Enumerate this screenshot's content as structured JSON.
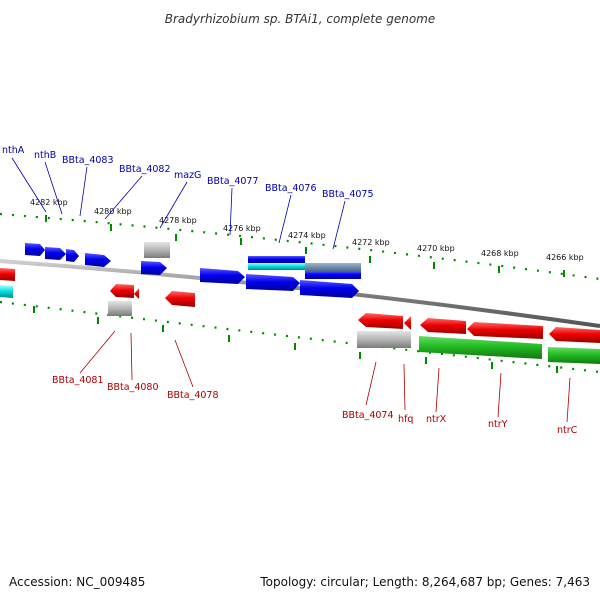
{
  "title": "Bradyrhizobium sp. BTAi1, complete genome",
  "footer": {
    "accession": "Accession: NC_009485",
    "topology": "Topology: circular; Length: 8,264,687 bp; Genes: 7,463"
  },
  "colors": {
    "forward_cds": "#0000ee",
    "reverse_cds": "#ee0000",
    "rna_or_pseudo": "#aaaaaa",
    "highlight_cyan": "#00cccc",
    "reverse_green": "#22bb22",
    "tick_green": "#008800",
    "backbone": "#888888",
    "top_label": "#0000aa",
    "bottom_label": "#aa0000"
  },
  "scale_labels": [
    "4282 kbp",
    "4280 kbp",
    "4278 kbp",
    "4276 kbp",
    "4274 kbp",
    "4272 kbp",
    "4270 kbp",
    "4268 kbp",
    "4266 kbp"
  ],
  "top_genes": [
    "nthA",
    "nthB",
    "BBta_4083",
    "BBta_4082",
    "mazG",
    "BBta_4077",
    "BBta_4076",
    "BBta_4075"
  ],
  "bottom_genes": [
    "BBta_4081",
    "BBta_4080",
    "BBta_4078",
    "BBta_4074",
    "hfq",
    "ntrX",
    "ntrY",
    "ntrC"
  ]
}
